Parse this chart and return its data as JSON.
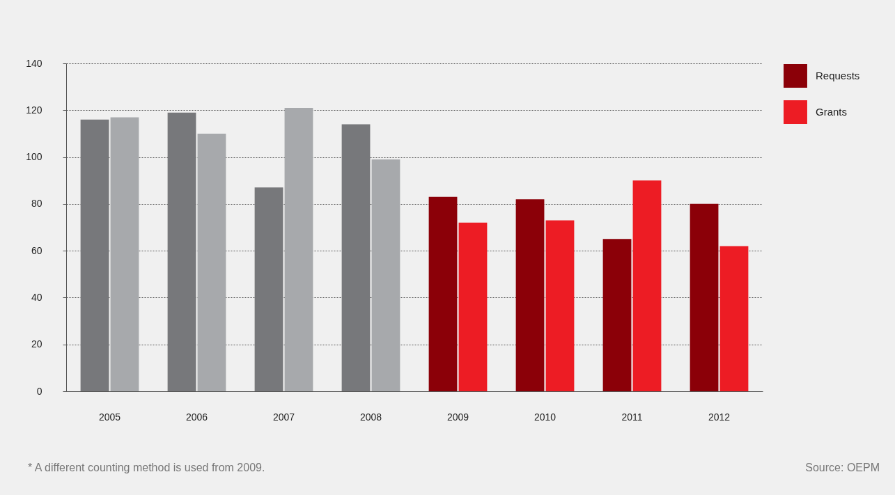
{
  "chart_data": {
    "type": "bar",
    "categories": [
      "2005",
      "2006",
      "2007",
      "2008",
      "2009",
      "2010",
      "2011",
      "2012"
    ],
    "series": [
      {
        "name": "Requests",
        "color": "#8b0008",
        "colors": [
          "#77787b",
          "#77787b",
          "#77787b",
          "#77787b",
          "#8b0008",
          "#8b0008",
          "#8b0008",
          "#8b0008"
        ],
        "values": [
          116,
          119,
          87,
          114,
          83,
          82,
          65,
          80
        ]
      },
      {
        "name": "Grants",
        "color": "#ed1c24",
        "colors": [
          "#a7a9ac",
          "#a7a9ac",
          "#a7a9ac",
          "#a7a9ac",
          "#ed1c24",
          "#ed1c24",
          "#ed1c24",
          "#ed1c24"
        ],
        "values": [
          117,
          110,
          121,
          99,
          72,
          73,
          90,
          62
        ]
      }
    ],
    "ylim": [
      0,
      140
    ],
    "yticks": [
      0,
      20,
      40,
      60,
      80,
      100,
      120,
      140
    ],
    "grid": "y",
    "legend": "top right",
    "annotations": [
      "* A different counting method is used from 2009.",
      "Source: OEPM"
    ]
  }
}
